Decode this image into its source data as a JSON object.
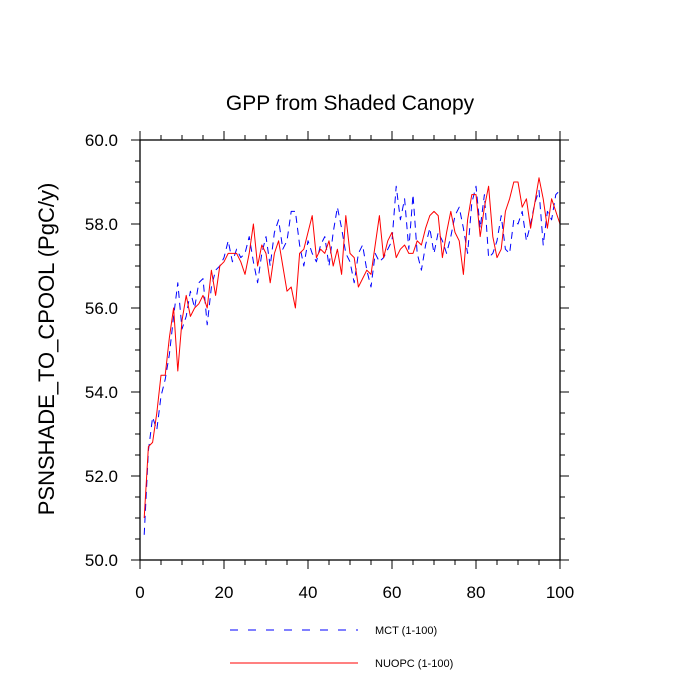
{
  "chart_data": {
    "type": "line",
    "title": "GPP from Shaded Canopy",
    "xlabel": "",
    "ylabel": "PSNSHADE_TO_CPOOL  (PgC/y)",
    "xlim": [
      0,
      100
    ],
    "ylim": [
      50,
      60
    ],
    "xticks": [
      "0",
      "20",
      "40",
      "60",
      "80",
      "100"
    ],
    "yticks": [
      "50.0",
      "52.0",
      "54.0",
      "56.0",
      "58.0",
      "60.0"
    ],
    "grid": false,
    "legend_position": "bottom",
    "series": [
      {
        "name": "MCT (1-100)",
        "color": "#0000ff",
        "style": "dashed",
        "x": [
          1,
          2,
          3,
          4,
          5,
          6,
          7,
          8,
          9,
          10,
          11,
          12,
          13,
          14,
          15,
          16,
          17,
          18,
          19,
          20,
          21,
          22,
          23,
          24,
          25,
          26,
          27,
          28,
          29,
          30,
          31,
          32,
          33,
          34,
          35,
          36,
          37,
          38,
          39,
          40,
          41,
          42,
          43,
          44,
          45,
          46,
          47,
          48,
          49,
          50,
          51,
          52,
          53,
          54,
          55,
          56,
          57,
          58,
          59,
          60,
          61,
          62,
          63,
          64,
          65,
          66,
          67,
          68,
          69,
          70,
          71,
          72,
          73,
          74,
          75,
          76,
          77,
          78,
          79,
          80,
          81,
          82,
          83,
          84,
          85,
          86,
          87,
          88,
          89,
          90,
          91,
          92,
          93,
          94,
          95,
          96,
          97,
          98,
          99,
          100
        ],
        "values": [
          50.6,
          52.6,
          53.4,
          53.1,
          53.9,
          54.3,
          54.9,
          55.8,
          56.6,
          55.5,
          55.8,
          56.4,
          56.0,
          56.6,
          56.7,
          55.6,
          56.5,
          56.9,
          57.0,
          57.2,
          57.6,
          57.1,
          57.4,
          57.2,
          57.3,
          57.7,
          57.1,
          56.6,
          57.3,
          57.7,
          57.0,
          57.8,
          58.1,
          57.4,
          57.6,
          58.3,
          58.3,
          57.5,
          57.0,
          57.6,
          57.3,
          57.1,
          57.5,
          57.7,
          57.0,
          57.8,
          58.4,
          57.9,
          57.3,
          57.1,
          56.6,
          57.3,
          57.5,
          56.9,
          56.5,
          57.3,
          57.1,
          57.2,
          57.4,
          57.6,
          58.9,
          58.1,
          58.6,
          57.4,
          58.7,
          57.3,
          56.9,
          57.5,
          57.9,
          57.3,
          57.8,
          57.6,
          57.3,
          57.7,
          58.2,
          58.4,
          57.9,
          57.3,
          58.5,
          58.9,
          57.9,
          58.7,
          57.2,
          57.3,
          57.6,
          58.2,
          57.4,
          57.3,
          58.1,
          58.0,
          58.3,
          57.6,
          58.0,
          58.5,
          58.8,
          57.5,
          58.3,
          58.1,
          58.7,
          58.8
        ]
      },
      {
        "name": "NUOPC (1-100)",
        "color": "#ff0000",
        "style": "solid",
        "x": [
          1,
          2,
          3,
          4,
          5,
          6,
          7,
          8,
          9,
          10,
          11,
          12,
          13,
          14,
          15,
          16,
          17,
          18,
          19,
          20,
          21,
          22,
          23,
          24,
          25,
          26,
          27,
          28,
          29,
          30,
          31,
          32,
          33,
          34,
          35,
          36,
          37,
          38,
          39,
          40,
          41,
          42,
          43,
          44,
          45,
          46,
          47,
          48,
          49,
          50,
          51,
          52,
          53,
          54,
          55,
          56,
          57,
          58,
          59,
          60,
          61,
          62,
          63,
          64,
          65,
          66,
          67,
          68,
          69,
          70,
          71,
          72,
          73,
          74,
          75,
          76,
          77,
          78,
          79,
          80,
          81,
          82,
          83,
          84,
          85,
          86,
          87,
          88,
          89,
          90,
          91,
          92,
          93,
          94,
          95,
          96,
          97,
          98,
          99,
          100
        ],
        "values": [
          51.0,
          52.7,
          52.8,
          53.5,
          54.4,
          54.4,
          55.3,
          56.0,
          54.5,
          55.7,
          56.3,
          55.8,
          56.0,
          56.1,
          56.3,
          56.0,
          56.9,
          56.3,
          57.0,
          57.1,
          57.3,
          57.3,
          57.3,
          57.1,
          56.8,
          57.3,
          58.0,
          57.0,
          57.5,
          57.3,
          56.6,
          57.3,
          57.6,
          57.0,
          56.4,
          56.5,
          56.0,
          57.3,
          57.4,
          57.8,
          58.2,
          57.2,
          57.4,
          57.3,
          57.6,
          57.0,
          57.4,
          56.8,
          58.2,
          57.3,
          57.2,
          56.5,
          56.7,
          56.9,
          56.8,
          57.5,
          58.2,
          57.2,
          57.6,
          57.8,
          57.2,
          57.4,
          57.5,
          57.3,
          57.3,
          57.6,
          57.5,
          57.9,
          58.2,
          58.3,
          58.2,
          57.2,
          57.8,
          58.3,
          57.8,
          57.6,
          56.8,
          58.1,
          58.7,
          58.7,
          57.7,
          58.4,
          58.9,
          57.7,
          57.2,
          57.4,
          58.3,
          58.6,
          59.0,
          59.0,
          58.4,
          58.6,
          57.9,
          58.5,
          59.1,
          58.6,
          57.9,
          58.6,
          58.3,
          58.0
        ]
      }
    ]
  }
}
